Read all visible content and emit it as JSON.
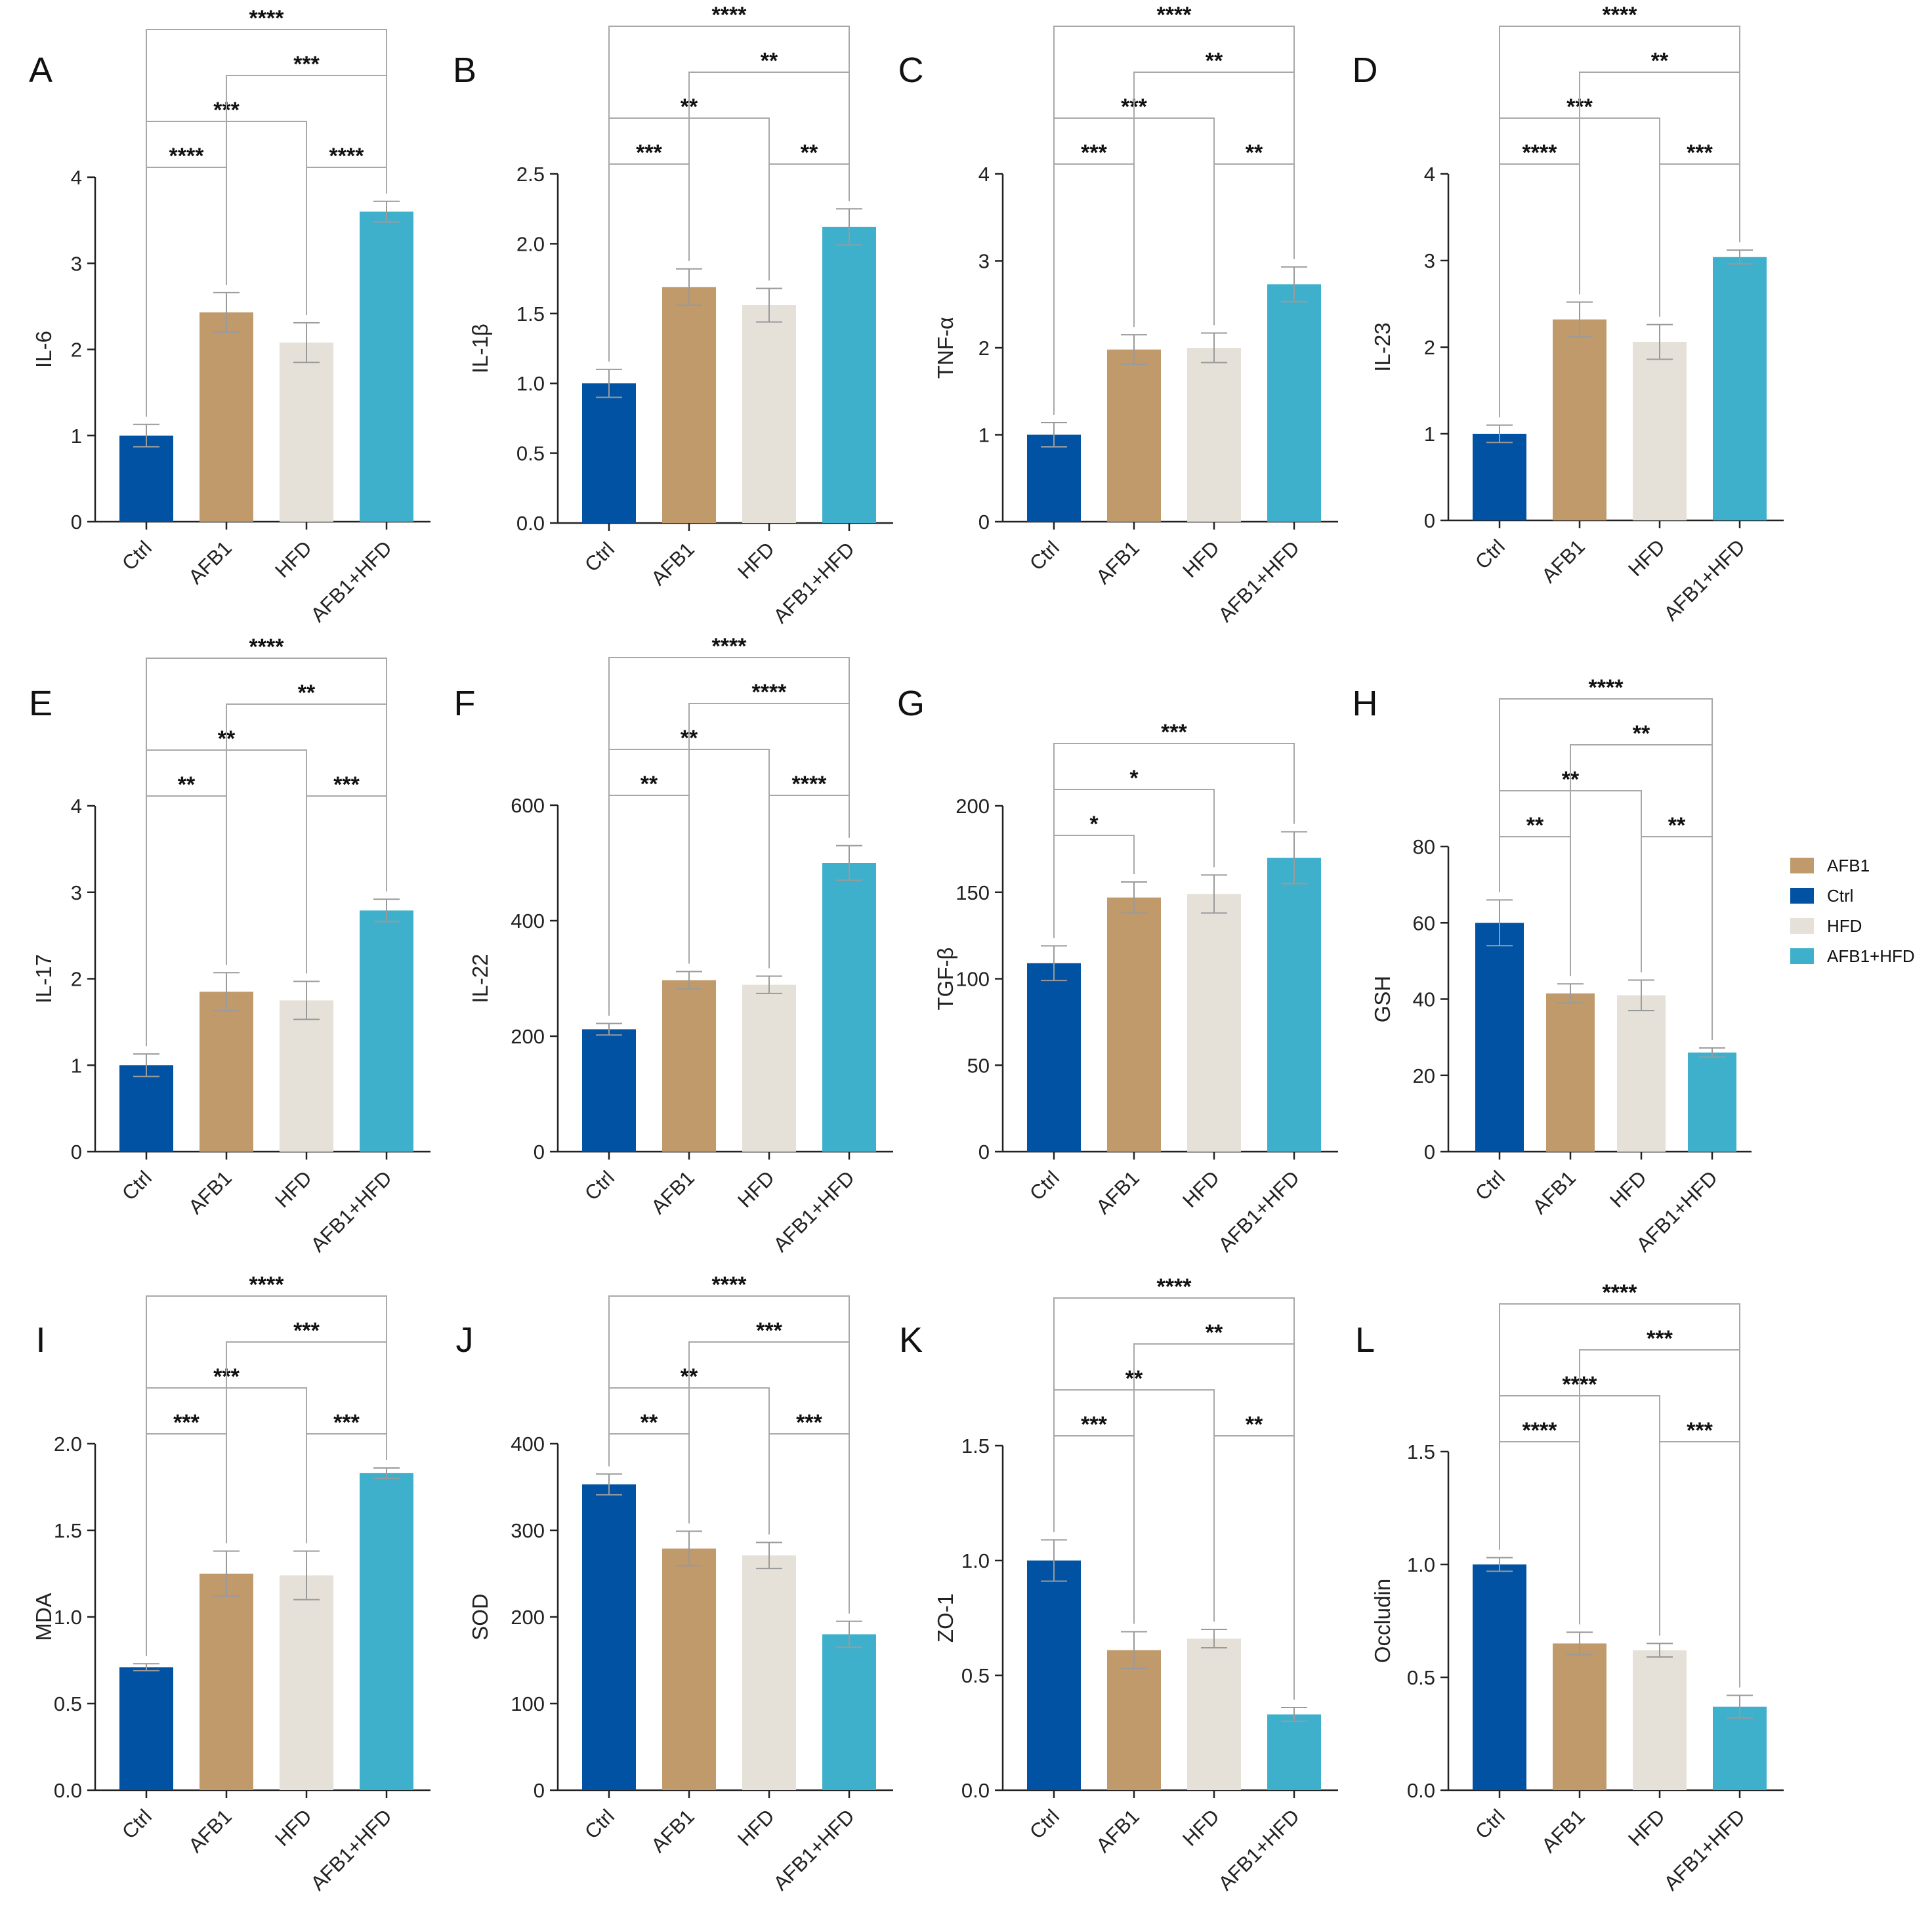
{
  "figure": {
    "groups": [
      "Ctrl",
      "AFB1",
      "HFD",
      "AFB1+HFD"
    ],
    "colors": {
      "Ctrl": "#0152a2",
      "AFB1": "#c19a6b",
      "HFD": "#e5e0d8",
      "AFB1+HFD": "#3fb0cc"
    },
    "legend": [
      {
        "label": "AFB1",
        "color": "#c19a6b"
      },
      {
        "label": "Ctrl",
        "color": "#0152a2"
      },
      {
        "label": "HFD",
        "color": "#e5e0d8"
      },
      {
        "label": "AFB1+HFD",
        "color": "#3fb0cc"
      }
    ]
  },
  "chart_data": [
    {
      "panel": "A",
      "type": "bar",
      "title": "",
      "ylabel": "IL-6",
      "categories": [
        "Ctrl",
        "AFB1",
        "HFD",
        "AFB1+HFD"
      ],
      "values": [
        1.0,
        2.43,
        2.08,
        3.6
      ],
      "errors": [
        0.13,
        0.23,
        0.23,
        0.12
      ],
      "ylim": [
        0,
        4
      ],
      "yticks": [
        "0",
        "1",
        "2",
        "3",
        "4"
      ],
      "significance": [
        {
          "from": "Ctrl",
          "to": "AFB1",
          "label": "****"
        },
        {
          "from": "HFD",
          "to": "AFB1+HFD",
          "label": "****"
        },
        {
          "from": "Ctrl",
          "to": "HFD",
          "label": "***"
        },
        {
          "from": "AFB1",
          "to": "AFB1+HFD",
          "label": "***"
        },
        {
          "from": "Ctrl",
          "to": "AFB1+HFD",
          "label": "****"
        }
      ]
    },
    {
      "panel": "B",
      "type": "bar",
      "title": "",
      "ylabel": "IL-1β",
      "categories": [
        "Ctrl",
        "AFB1",
        "HFD",
        "AFB1+HFD"
      ],
      "values": [
        1.0,
        1.69,
        1.56,
        2.12
      ],
      "errors": [
        0.1,
        0.13,
        0.12,
        0.13
      ],
      "ylim": [
        0,
        2.5
      ],
      "yticks": [
        "0.0",
        "0.5",
        "1.0",
        "1.5",
        "2.0",
        "2.5"
      ],
      "significance": [
        {
          "from": "Ctrl",
          "to": "AFB1",
          "label": "***"
        },
        {
          "from": "HFD",
          "to": "AFB1+HFD",
          "label": "**"
        },
        {
          "from": "Ctrl",
          "to": "HFD",
          "label": "**"
        },
        {
          "from": "AFB1",
          "to": "AFB1+HFD",
          "label": "**"
        },
        {
          "from": "Ctrl",
          "to": "AFB1+HFD",
          "label": "****"
        }
      ]
    },
    {
      "panel": "C",
      "type": "bar",
      "title": "",
      "ylabel": "TNF-α",
      "categories": [
        "Ctrl",
        "AFB1",
        "HFD",
        "AFB1+HFD"
      ],
      "values": [
        1.0,
        1.98,
        2.0,
        2.73
      ],
      "errors": [
        0.14,
        0.17,
        0.17,
        0.2
      ],
      "ylim": [
        0,
        4
      ],
      "yticks": [
        "0",
        "1",
        "2",
        "3",
        "4"
      ],
      "significance": [
        {
          "from": "Ctrl",
          "to": "AFB1",
          "label": "***"
        },
        {
          "from": "HFD",
          "to": "AFB1+HFD",
          "label": "**"
        },
        {
          "from": "Ctrl",
          "to": "HFD",
          "label": "***"
        },
        {
          "from": "AFB1",
          "to": "AFB1+HFD",
          "label": "**"
        },
        {
          "from": "Ctrl",
          "to": "AFB1+HFD",
          "label": "****"
        }
      ]
    },
    {
      "panel": "D",
      "type": "bar",
      "title": "",
      "ylabel": "IL-23",
      "categories": [
        "Ctrl",
        "AFB1",
        "HFD",
        "AFB1+HFD"
      ],
      "values": [
        1.0,
        2.32,
        2.06,
        3.04
      ],
      "errors": [
        0.1,
        0.2,
        0.2,
        0.08
      ],
      "ylim": [
        0,
        4
      ],
      "yticks": [
        "0",
        "1",
        "2",
        "3",
        "4"
      ],
      "significance": [
        {
          "from": "Ctrl",
          "to": "AFB1",
          "label": "****"
        },
        {
          "from": "HFD",
          "to": "AFB1+HFD",
          "label": "***"
        },
        {
          "from": "Ctrl",
          "to": "HFD",
          "label": "***"
        },
        {
          "from": "AFB1",
          "to": "AFB1+HFD",
          "label": "**"
        },
        {
          "from": "Ctrl",
          "to": "AFB1+HFD",
          "label": "****"
        }
      ]
    },
    {
      "panel": "E",
      "type": "bar",
      "title": "",
      "ylabel": "IL-17",
      "categories": [
        "Ctrl",
        "AFB1",
        "HFD",
        "AFB1+HFD"
      ],
      "values": [
        1.0,
        1.85,
        1.75,
        2.79
      ],
      "errors": [
        0.13,
        0.22,
        0.22,
        0.13
      ],
      "ylim": [
        0,
        4
      ],
      "yticks": [
        "0",
        "1",
        "2",
        "3",
        "4"
      ],
      "significance": [
        {
          "from": "Ctrl",
          "to": "AFB1",
          "label": "**"
        },
        {
          "from": "HFD",
          "to": "AFB1+HFD",
          "label": "***"
        },
        {
          "from": "Ctrl",
          "to": "HFD",
          "label": "**"
        },
        {
          "from": "AFB1",
          "to": "AFB1+HFD",
          "label": "**"
        },
        {
          "from": "Ctrl",
          "to": "AFB1+HFD",
          "label": "****"
        }
      ]
    },
    {
      "panel": "F",
      "type": "bar",
      "title": "",
      "ylabel": "IL-22",
      "categories": [
        "Ctrl",
        "AFB1",
        "HFD",
        "AFB1+HFD"
      ],
      "values": [
        212,
        297,
        289,
        500
      ],
      "errors": [
        10,
        15,
        15,
        30
      ],
      "ylim": [
        0,
        600
      ],
      "yticks": [
        "0",
        "200",
        "400",
        "600"
      ],
      "significance": [
        {
          "from": "Ctrl",
          "to": "AFB1",
          "label": "**"
        },
        {
          "from": "HFD",
          "to": "AFB1+HFD",
          "label": "****"
        },
        {
          "from": "Ctrl",
          "to": "HFD",
          "label": "**"
        },
        {
          "from": "AFB1",
          "to": "AFB1+HFD",
          "label": "****"
        },
        {
          "from": "Ctrl",
          "to": "AFB1+HFD",
          "label": "****"
        }
      ]
    },
    {
      "panel": "G",
      "type": "bar",
      "title": "",
      "ylabel": "TGF-β",
      "categories": [
        "Ctrl",
        "AFB1",
        "HFD",
        "AFB1+HFD"
      ],
      "values": [
        109,
        147,
        149,
        170
      ],
      "errors": [
        10,
        9,
        11,
        15
      ],
      "ylim": [
        0,
        200
      ],
      "yticks": [
        "0",
        "50",
        "100",
        "150",
        "200"
      ],
      "significance": [
        {
          "from": "Ctrl",
          "to": "AFB1",
          "label": "*"
        },
        {
          "from": "Ctrl",
          "to": "HFD",
          "label": "*"
        },
        {
          "from": "Ctrl",
          "to": "AFB1+HFD",
          "label": "***"
        }
      ]
    },
    {
      "panel": "H",
      "type": "bar",
      "title": "",
      "ylabel": "GSH",
      "categories": [
        "Ctrl",
        "AFB1",
        "HFD",
        "AFB1+HFD"
      ],
      "values": [
        60,
        41.5,
        41,
        26
      ],
      "errors": [
        6,
        2.5,
        4,
        1.2
      ],
      "ylim": [
        0,
        80
      ],
      "yticks": [
        "0",
        "20",
        "40",
        "60",
        "80"
      ],
      "significance": [
        {
          "from": "Ctrl",
          "to": "AFB1",
          "label": "**"
        },
        {
          "from": "HFD",
          "to": "AFB1+HFD",
          "label": "**"
        },
        {
          "from": "Ctrl",
          "to": "HFD",
          "label": "**"
        },
        {
          "from": "AFB1",
          "to": "AFB1+HFD",
          "label": "**"
        },
        {
          "from": "Ctrl",
          "to": "AFB1+HFD",
          "label": "****"
        }
      ]
    },
    {
      "panel": "I",
      "type": "bar",
      "title": "",
      "ylabel": "MDA",
      "categories": [
        "Ctrl",
        "AFB1",
        "HFD",
        "AFB1+HFD"
      ],
      "values": [
        0.71,
        1.25,
        1.24,
        1.83
      ],
      "errors": [
        0.02,
        0.13,
        0.14,
        0.03
      ],
      "ylim": [
        0,
        2.0
      ],
      "yticks": [
        "0.0",
        "0.5",
        "1.0",
        "1.5",
        "2.0"
      ],
      "significance": [
        {
          "from": "Ctrl",
          "to": "AFB1",
          "label": "***"
        },
        {
          "from": "HFD",
          "to": "AFB1+HFD",
          "label": "***"
        },
        {
          "from": "Ctrl",
          "to": "HFD",
          "label": "***"
        },
        {
          "from": "AFB1",
          "to": "AFB1+HFD",
          "label": "***"
        },
        {
          "from": "Ctrl",
          "to": "AFB1+HFD",
          "label": "****"
        }
      ]
    },
    {
      "panel": "J",
      "type": "bar",
      "title": "",
      "ylabel": "SOD",
      "categories": [
        "Ctrl",
        "AFB1",
        "HFD",
        "AFB1+HFD"
      ],
      "values": [
        353,
        279,
        271,
        180
      ],
      "errors": [
        12,
        20,
        15,
        15
      ],
      "ylim": [
        0,
        400
      ],
      "yticks": [
        "0",
        "100",
        "200",
        "300",
        "400"
      ],
      "significance": [
        {
          "from": "Ctrl",
          "to": "AFB1",
          "label": "**"
        },
        {
          "from": "HFD",
          "to": "AFB1+HFD",
          "label": "***"
        },
        {
          "from": "Ctrl",
          "to": "HFD",
          "label": "**"
        },
        {
          "from": "AFB1",
          "to": "AFB1+HFD",
          "label": "***"
        },
        {
          "from": "Ctrl",
          "to": "AFB1+HFD",
          "label": "****"
        }
      ]
    },
    {
      "panel": "K",
      "type": "bar",
      "title": "",
      "ylabel": "ZO-1",
      "categories": [
        "Ctrl",
        "AFB1",
        "HFD",
        "AFB1+HFD"
      ],
      "values": [
        1.0,
        0.61,
        0.66,
        0.33
      ],
      "errors": [
        0.09,
        0.08,
        0.04,
        0.03
      ],
      "ylim": [
        0,
        1.5
      ],
      "yticks": [
        "0.0",
        "0.5",
        "1.0",
        "1.5"
      ],
      "significance": [
        {
          "from": "Ctrl",
          "to": "AFB1",
          "label": "***"
        },
        {
          "from": "HFD",
          "to": "AFB1+HFD",
          "label": "**"
        },
        {
          "from": "Ctrl",
          "to": "HFD",
          "label": "**"
        },
        {
          "from": "AFB1",
          "to": "AFB1+HFD",
          "label": "**"
        },
        {
          "from": "Ctrl",
          "to": "AFB1+HFD",
          "label": "****"
        }
      ]
    },
    {
      "panel": "L",
      "type": "bar",
      "title": "",
      "ylabel": "Occludin",
      "categories": [
        "Ctrl",
        "AFB1",
        "HFD",
        "AFB1+HFD"
      ],
      "values": [
        1.0,
        0.65,
        0.62,
        0.37
      ],
      "errors": [
        0.03,
        0.05,
        0.03,
        0.05
      ],
      "ylim": [
        0,
        1.5
      ],
      "yticks": [
        "0.0",
        "0.5",
        "1.0",
        "1.5"
      ],
      "significance": [
        {
          "from": "Ctrl",
          "to": "AFB1",
          "label": "****"
        },
        {
          "from": "HFD",
          "to": "AFB1+HFD",
          "label": "***"
        },
        {
          "from": "Ctrl",
          "to": "HFD",
          "label": "****"
        },
        {
          "from": "AFB1",
          "to": "AFB1+HFD",
          "label": "***"
        },
        {
          "from": "Ctrl",
          "to": "AFB1+HFD",
          "label": "****"
        }
      ]
    }
  ]
}
